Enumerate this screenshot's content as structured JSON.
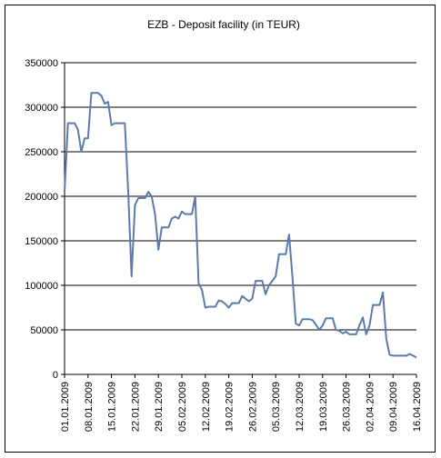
{
  "chart_data": {
    "type": "line",
    "title": "EZB - Deposit facility (in TEUR)",
    "xlabel": "",
    "ylabel": "",
    "ylim": [
      0,
      350000
    ],
    "y_ticks": [
      0,
      50000,
      100000,
      150000,
      200000,
      250000,
      300000,
      350000
    ],
    "y_tick_labels": [
      "0",
      "50000",
      "100000",
      "150000",
      "200000",
      "250000",
      "300000",
      "350000"
    ],
    "x_tick_labels": [
      "01.01.2009",
      "08.01.2009",
      "15.01.2009",
      "22.01.2009",
      "29.01.2009",
      "05.02.2009",
      "12.02.2009",
      "19.02.2009",
      "26.02.2009",
      "05.03.2009",
      "12.03.2009",
      "19.03.2009",
      "26.03.2009",
      "02.04.2009",
      "09.04.2009",
      "16.04.2009"
    ],
    "x_range": [
      "2009-01-01",
      "2009-04-16"
    ],
    "grid": "horizontal",
    "line_color": "#5b7bab",
    "series": [
      {
        "name": "",
        "points": [
          [
            "2009-01-01",
            205000
          ],
          [
            "2009-01-02",
            282000
          ],
          [
            "2009-01-03",
            282000
          ],
          [
            "2009-01-04",
            282000
          ],
          [
            "2009-01-05",
            275000
          ],
          [
            "2009-01-06",
            250000
          ],
          [
            "2009-01-07",
            265000
          ],
          [
            "2009-01-08",
            265000
          ],
          [
            "2009-01-09",
            316000
          ],
          [
            "2009-01-10",
            316000
          ],
          [
            "2009-01-11",
            316000
          ],
          [
            "2009-01-12",
            313000
          ],
          [
            "2009-01-13",
            304000
          ],
          [
            "2009-01-14",
            306000
          ],
          [
            "2009-01-15",
            280000
          ],
          [
            "2009-01-16",
            282000
          ],
          [
            "2009-01-17",
            282000
          ],
          [
            "2009-01-18",
            282000
          ],
          [
            "2009-01-19",
            282000
          ],
          [
            "2009-01-20",
            205000
          ],
          [
            "2009-01-21",
            110000
          ],
          [
            "2009-01-22",
            190000
          ],
          [
            "2009-01-23",
            198000
          ],
          [
            "2009-01-24",
            198000
          ],
          [
            "2009-01-25",
            198000
          ],
          [
            "2009-01-26",
            205000
          ],
          [
            "2009-01-27",
            200000
          ],
          [
            "2009-01-28",
            180000
          ],
          [
            "2009-01-29",
            140000
          ],
          [
            "2009-01-30",
            165000
          ],
          [
            "2009-01-31",
            165000
          ],
          [
            "2009-02-01",
            165000
          ],
          [
            "2009-02-02",
            175000
          ],
          [
            "2009-02-03",
            177000
          ],
          [
            "2009-02-04",
            175000
          ],
          [
            "2009-02-05",
            183000
          ],
          [
            "2009-02-06",
            180000
          ],
          [
            "2009-02-07",
            180000
          ],
          [
            "2009-02-08",
            180000
          ],
          [
            "2009-02-09",
            200000
          ],
          [
            "2009-02-10",
            102000
          ],
          [
            "2009-02-11",
            95000
          ],
          [
            "2009-02-12",
            75000
          ],
          [
            "2009-02-13",
            76000
          ],
          [
            "2009-02-14",
            76000
          ],
          [
            "2009-02-15",
            76000
          ],
          [
            "2009-02-16",
            83000
          ],
          [
            "2009-02-17",
            82000
          ],
          [
            "2009-02-18",
            79000
          ],
          [
            "2009-02-19",
            75000
          ],
          [
            "2009-02-20",
            80000
          ],
          [
            "2009-02-21",
            80000
          ],
          [
            "2009-02-22",
            80000
          ],
          [
            "2009-02-23",
            88000
          ],
          [
            "2009-02-24",
            85000
          ],
          [
            "2009-02-25",
            82000
          ],
          [
            "2009-02-26",
            85000
          ],
          [
            "2009-02-27",
            105000
          ],
          [
            "2009-02-28",
            105000
          ],
          [
            "2009-03-01",
            105000
          ],
          [
            "2009-03-02",
            90000
          ],
          [
            "2009-03-03",
            100000
          ],
          [
            "2009-03-04",
            105000
          ],
          [
            "2009-03-05",
            110000
          ],
          [
            "2009-03-06",
            135000
          ],
          [
            "2009-03-07",
            135000
          ],
          [
            "2009-03-08",
            135000
          ],
          [
            "2009-03-09",
            157000
          ],
          [
            "2009-03-10",
            110000
          ],
          [
            "2009-03-11",
            57000
          ],
          [
            "2009-03-12",
            55000
          ],
          [
            "2009-03-13",
            62000
          ],
          [
            "2009-03-14",
            62000
          ],
          [
            "2009-03-15",
            62000
          ],
          [
            "2009-03-16",
            61000
          ],
          [
            "2009-03-17",
            56000
          ],
          [
            "2009-03-18",
            50000
          ],
          [
            "2009-03-19",
            55000
          ],
          [
            "2009-03-20",
            63000
          ],
          [
            "2009-03-21",
            63000
          ],
          [
            "2009-03-22",
            63000
          ],
          [
            "2009-03-23",
            50000
          ],
          [
            "2009-03-24",
            49000
          ],
          [
            "2009-03-25",
            46000
          ],
          [
            "2009-03-26",
            48000
          ],
          [
            "2009-03-27",
            45000
          ],
          [
            "2009-03-28",
            45000
          ],
          [
            "2009-03-29",
            45000
          ],
          [
            "2009-03-30",
            55000
          ],
          [
            "2009-03-31",
            64000
          ],
          [
            "2009-04-01",
            45000
          ],
          [
            "2009-04-02",
            55000
          ],
          [
            "2009-04-03",
            78000
          ],
          [
            "2009-04-04",
            78000
          ],
          [
            "2009-04-05",
            78000
          ],
          [
            "2009-04-06",
            92000
          ],
          [
            "2009-04-07",
            40000
          ],
          [
            "2009-04-08",
            22000
          ],
          [
            "2009-04-09",
            21000
          ],
          [
            "2009-04-10",
            21000
          ],
          [
            "2009-04-11",
            21000
          ],
          [
            "2009-04-12",
            21000
          ],
          [
            "2009-04-13",
            21000
          ],
          [
            "2009-04-14",
            23000
          ],
          [
            "2009-04-15",
            21000
          ],
          [
            "2009-04-16",
            19000
          ]
        ]
      }
    ]
  }
}
